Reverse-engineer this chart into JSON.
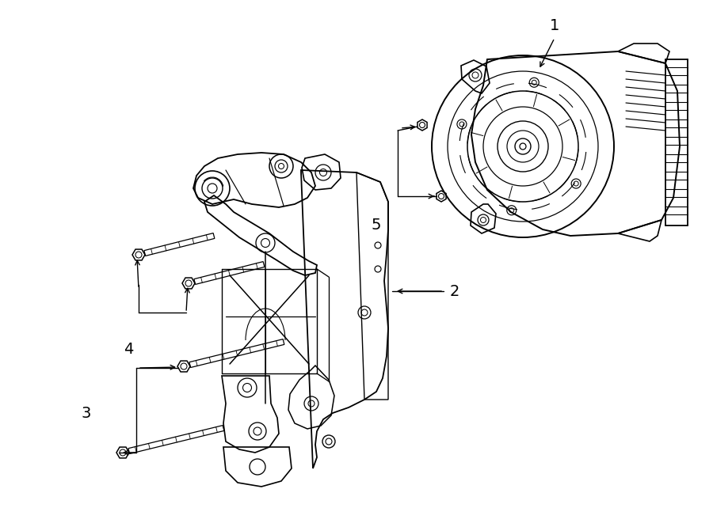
{
  "bg_color": "#ffffff",
  "line_color": "#000000",
  "fig_width": 9.0,
  "fig_height": 6.61,
  "dpi": 100,
  "label_fontsize": 14
}
